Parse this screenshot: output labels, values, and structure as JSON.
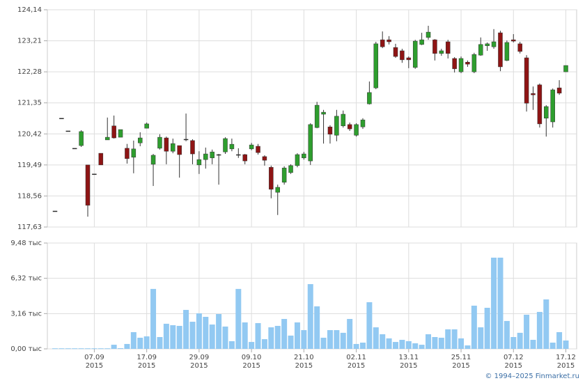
{
  "chart_data": {
    "type": "candlestick",
    "categories": [
      null,
      null,
      null,
      null,
      null,
      null,
      "07.09\n2015",
      null,
      null,
      null,
      null,
      null,
      null,
      null,
      "17.09\n2015",
      null,
      null,
      null,
      null,
      null,
      null,
      null,
      "29.09\n2015",
      null,
      null,
      null,
      null,
      null,
      null,
      null,
      "09.10\n2015",
      null,
      null,
      null,
      null,
      null,
      null,
      null,
      "21.10\n2015",
      null,
      null,
      null,
      null,
      null,
      null,
      null,
      "02.11\n2015",
      null,
      null,
      null,
      null,
      null,
      null,
      null,
      "13.11\n2015",
      null,
      null,
      null,
      null,
      null,
      null,
      null,
      "25.11\n2015",
      null,
      null,
      null,
      null,
      null,
      null,
      null,
      "07.12\n2015",
      null,
      null,
      null,
      null,
      null,
      null,
      null,
      "17.12\n2015"
    ],
    "open": [
      118.11,
      120.89,
      120.51,
      119.99,
      120.07,
      119.49,
      119.22,
      119.84,
      120.24,
      120.66,
      120.32,
      119.99,
      119.72,
      120.15,
      120.59,
      119.51,
      119.99,
      120.3,
      119.9,
      120.07,
      120.26,
      120.22,
      119.49,
      119.65,
      119.7,
      119.8,
      119.88,
      119.97,
      119.8,
      119.8,
      119.97,
      120.05,
      119.74,
      119.42,
      118.67,
      118.97,
      119.26,
      119.47,
      119.7,
      119.61,
      120.61,
      121.01,
      120.63,
      120.38,
      120.66,
      120.7,
      120.38,
      120.63,
      121.32,
      121.8,
      123.24,
      123.24,
      123.01,
      122.91,
      122.7,
      122.41,
      123.1,
      123.31,
      123.24,
      122.83,
      123.18,
      122.68,
      122.28,
      122.57,
      122.28,
      122.78,
      123.06,
      123.03,
      123.45,
      122.62,
      123.24,
      123.12,
      122.7,
      121.63,
      121.89,
      120.89,
      120.78,
      121.8,
      122.28
    ],
    "high": [
      118.11,
      120.89,
      120.51,
      119.99,
      120.53,
      119.49,
      119.22,
      119.84,
      120.91,
      120.97,
      120.55,
      120.12,
      120.22,
      120.47,
      120.76,
      119.82,
      120.41,
      120.34,
      120.28,
      120.07,
      121.03,
      120.26,
      119.9,
      120.01,
      119.95,
      119.82,
      120.32,
      120.28,
      119.99,
      119.82,
      120.15,
      120.12,
      119.78,
      119.47,
      118.9,
      119.45,
      119.51,
      119.84,
      119.88,
      120.74,
      121.38,
      121.14,
      120.68,
      121.14,
      121.12,
      120.76,
      120.74,
      120.89,
      121.99,
      123.18,
      123.49,
      123.35,
      123.12,
      122.97,
      122.74,
      123.24,
      123.45,
      123.66,
      123.26,
      122.97,
      123.24,
      122.72,
      122.74,
      122.62,
      122.85,
      123.31,
      123.16,
      123.56,
      123.51,
      123.22,
      123.41,
      123.18,
      122.78,
      121.84,
      121.93,
      121.28,
      121.78,
      122.03,
      122.47
    ],
    "low": [
      118.11,
      120.89,
      120.51,
      119.99,
      120.03,
      117.94,
      119.22,
      119.49,
      120.24,
      120.28,
      120.32,
      119.53,
      119.24,
      120.05,
      120.59,
      118.86,
      119.95,
      119.51,
      119.84,
      119.11,
      120.2,
      119.51,
      119.22,
      119.38,
      119.51,
      118.9,
      119.82,
      119.9,
      119.7,
      119.51,
      119.93,
      119.8,
      119.47,
      118.49,
      117.99,
      118.9,
      119.22,
      119.42,
      119.65,
      119.49,
      120.59,
      120.13,
      120.13,
      120.2,
      120.61,
      120.51,
      120.34,
      120.57,
      121.3,
      121.76,
      122.99,
      123.1,
      122.7,
      122.55,
      122.39,
      122.37,
      123.08,
      123.24,
      122.62,
      122.76,
      122.68,
      122.26,
      122.24,
      122.43,
      122.24,
      122.76,
      122.91,
      122.97,
      122.3,
      122.6,
      123.16,
      122.83,
      121.09,
      121.14,
      120.61,
      120.34,
      120.61,
      121.59,
      122.28
    ],
    "close": [
      118.11,
      120.89,
      120.51,
      119.99,
      120.49,
      118.28,
      119.22,
      119.49,
      120.32,
      120.3,
      120.55,
      119.68,
      119.97,
      120.3,
      120.72,
      119.78,
      120.32,
      119.9,
      120.13,
      119.8,
      120.26,
      119.82,
      119.65,
      119.82,
      119.88,
      119.8,
      120.28,
      120.11,
      119.8,
      119.61,
      120.09,
      119.86,
      119.63,
      118.76,
      118.82,
      119.4,
      119.47,
      119.8,
      119.82,
      120.7,
      121.28,
      121.07,
      120.41,
      120.95,
      121.01,
      120.57,
      120.7,
      120.84,
      121.66,
      123.12,
      123.03,
      123.18,
      122.74,
      122.64,
      122.64,
      123.2,
      123.24,
      123.47,
      122.83,
      122.91,
      122.83,
      122.37,
      122.68,
      122.51,
      122.8,
      123.1,
      123.12,
      123.18,
      122.43,
      123.16,
      123.2,
      122.89,
      121.34,
      121.59,
      120.72,
      121.24,
      121.74,
      121.64,
      122.47
    ],
    "up_color": "#2e9e2e",
    "down_color": "#8e1414",
    "ylim": [
      117.63,
      124.14
    ],
    "yticks": [
      {
        "value": 117.63,
        "label": "117,63"
      },
      {
        "value": 118.56,
        "label": "118,56"
      },
      {
        "value": 119.49,
        "label": "119,49"
      },
      {
        "value": 120.42,
        "label": "120,42"
      },
      {
        "value": 121.35,
        "label": "121,35"
      },
      {
        "value": 122.28,
        "label": "122,28"
      },
      {
        "value": 123.21,
        "label": "123,21"
      },
      {
        "value": 124.14,
        "label": "124,14"
      }
    ],
    "volume": {
      "color": "#92c9f2",
      "values": [
        0.05,
        0.05,
        0.05,
        0.05,
        0.05,
        0.05,
        0.05,
        0.05,
        0.05,
        0.37,
        0.06,
        0.44,
        1.5,
        1.0,
        1.12,
        5.37,
        1.06,
        2.25,
        2.12,
        2.06,
        3.49,
        2.43,
        3.18,
        2.87,
        2.18,
        3.12,
        2.0,
        0.69,
        5.37,
        2.37,
        0.62,
        2.31,
        0.87,
        1.93,
        2.06,
        2.68,
        1.19,
        2.37,
        1.68,
        5.8,
        3.81,
        1.0,
        1.68,
        1.68,
        1.44,
        2.68,
        0.44,
        0.56,
        4.18,
        1.93,
        1.31,
        0.94,
        0.62,
        0.81,
        0.69,
        0.5,
        0.37,
        1.31,
        1.06,
        1.0,
        1.75,
        1.75,
        0.94,
        0.31,
        3.87,
        1.93,
        3.68,
        8.17,
        8.17,
        2.5,
        1.06,
        1.44,
        3.06,
        0.81,
        3.31,
        4.43,
        0.56,
        1.5,
        0.75
      ],
      "ylim": [
        0,
        9.48
      ],
      "yticks": [
        {
          "value": 0,
          "label": "0,00 тыс"
        },
        {
          "value": 3.16,
          "label": "3,16 тыс"
        },
        {
          "value": 6.32,
          "label": "6,32 тыс"
        },
        {
          "value": 9.48,
          "label": "9,48 тыс"
        }
      ]
    },
    "grid": true
  },
  "footer": "© 1994–2025 Finmarket.ru"
}
